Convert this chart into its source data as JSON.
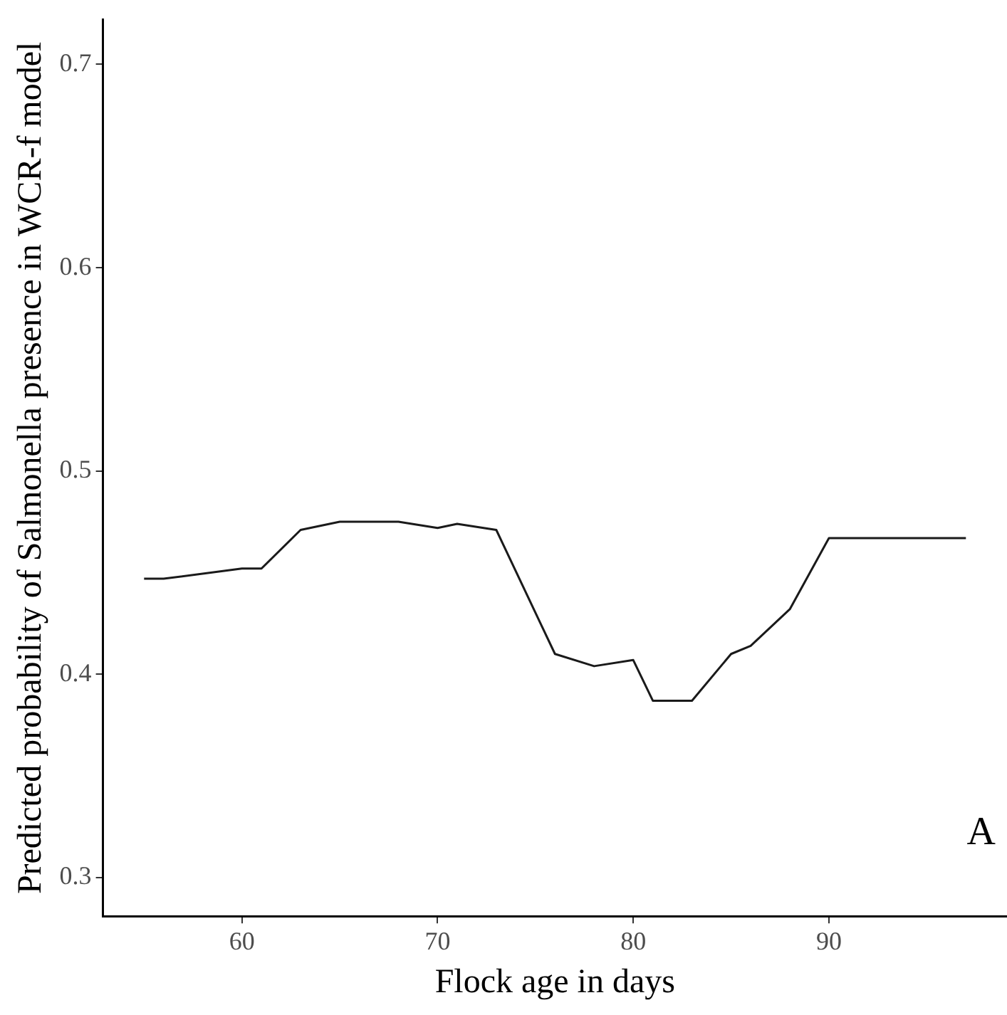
{
  "chart_data": {
    "type": "line",
    "xlabel": "Flock age in days",
    "ylabel": "Predicted probability of Salmonella presence in WCR-f model",
    "x": [
      55,
      56,
      60,
      61,
      63,
      65,
      68,
      70,
      71,
      73,
      76,
      78,
      80,
      81,
      83,
      85,
      86,
      88,
      90,
      91,
      93,
      97
    ],
    "series": [
      {
        "color": "#1a1a1a",
        "values": [
          0.447,
          0.447,
          0.452,
          0.452,
          0.471,
          0.475,
          0.475,
          0.472,
          0.474,
          0.471,
          0.41,
          0.404,
          0.407,
          0.387,
          0.387,
          0.41,
          0.414,
          0.432,
          0.467,
          0.467,
          0.467,
          0.467
        ]
      }
    ],
    "xlim": [
      52.9,
      99.1
    ],
    "xticks": [
      60,
      70,
      80,
      90
    ],
    "ylim": [
      0.281,
      0.722
    ],
    "yticks": [
      0.3,
      0.4,
      0.5,
      0.6,
      0.7
    ],
    "grid": false,
    "legend": false,
    "marker": "none",
    "line_style": "solid",
    "annotations": [
      "A"
    ]
  }
}
